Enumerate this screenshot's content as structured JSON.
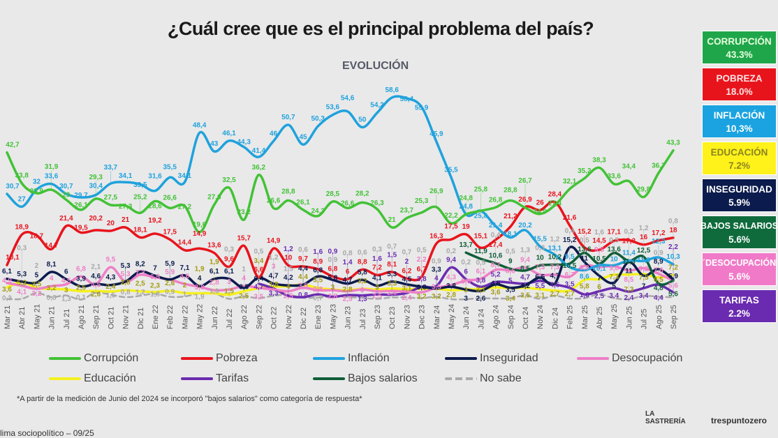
{
  "title": "¿Cuál cree que es el principal problema del país?",
  "subtitle": "EVOLUCIÓN",
  "panel": [
    {
      "label": "CORRUPCIÓN",
      "value": "43.3%",
      "bg": "#1fa64a",
      "fg": "#e8ffe0"
    },
    {
      "label": "POBREZA",
      "value": "18.0%",
      "bg": "#e8141c",
      "fg": "#ffe3e3"
    },
    {
      "label": "INFLACIÓN",
      "value": "10,3%",
      "bg": "#1aa3e0",
      "fg": "#ffffff"
    },
    {
      "label": "EDUCACIÓN",
      "value": "7.2%",
      "bg": "#fff21a",
      "fg": "#8a8420"
    },
    {
      "label": "INSEGURIDAD",
      "value": "5.9%",
      "bg": "#0c1b4d",
      "fg": "#ffffff"
    },
    {
      "label": "BAJOS SALARIOS",
      "value": "5.6%",
      "bg": "#0f6b3c",
      "fg": "#ffffff"
    },
    {
      "label": "´DESOCUPACIÓN",
      "value": "5.6%",
      "bg": "#f07ac8",
      "fg": "#ffffff"
    },
    {
      "label": "TARIFAS",
      "value": "2.2%",
      "bg": "#6a2bb0",
      "fg": "#ffffff"
    }
  ],
  "note": "*A partir de la medición de Junio del 2024 se incorporó \"bajos salarios\" como categoría de respuesta*",
  "footer": "lima sociopolítico – 09/25",
  "logos": {
    "left": "LA SASTRERÍA",
    "right": "trespuntozero"
  },
  "chart_data": {
    "type": "line",
    "title": "¿Cuál cree que es el principal problema del país?",
    "subtitle": "EVOLUCIÓN",
    "ylim": [
      0,
      60
    ],
    "grid": false,
    "legend": "bottom",
    "categories": [
      "Mar 21",
      "Abr 21",
      "May 21",
      "Jun 21",
      "Jul 21",
      "Ago 21",
      "Sep 21",
      "Oct 21",
      "Nov 21",
      "Dic 21",
      "Ene 22",
      "Feb 22",
      "Mar 22",
      "May 22",
      "Jun 22",
      "Jul 22",
      "Ago 22",
      "Sep 22",
      "Oct 22",
      "Nov 22",
      "Dic 22",
      "Ene 23",
      "May 23",
      "Jun 23",
      "Jul 23",
      "Sep 23",
      "Oct 23",
      "Nov 23",
      "Dec 23",
      "Mar 24",
      "May 24",
      "Jun 24",
      "Jul 24",
      "Ago 24",
      "Sep 24",
      "Oct 24",
      "Nov 24",
      "Dic 24",
      "Feb 25",
      "Mar 25",
      "Abr 25",
      "May 25",
      "Jun 25",
      "Jul 25",
      "Ago 25",
      "Sep 25"
    ],
    "series": [
      {
        "name": "No sabe",
        "color": "#a8a8a8",
        "dashed": true,
        "values": [
          0.3,
          0.3,
          2,
          0.8,
          1.3,
          0.1,
          2.1,
          1.5,
          0.8,
          1.2,
          1.8,
          0.9,
          1,
          1.9,
          1.9,
          0.3,
          1,
          0.5,
          1.2,
          1.5,
          0.6,
          0.7,
          0.9,
          0.8,
          0.6,
          0.3,
          0.7,
          0.7,
          0.5,
          0.9,
          0.2,
          0.2,
          0.5,
          0.4,
          0.5,
          1.3,
          0.3,
          1.2,
          0.4,
          0.5,
          1.6,
          0.5,
          0.2,
          1.2,
          0.9,
          0.8
        ]
      },
      {
        "name": "Educación",
        "color": "#f5f01e",
        "values": [
          3.6,
          5.2,
          3.5,
          3.2,
          3.0,
          2.5,
          2.6,
          2.4,
          2.8,
          2.5,
          2.3,
          2.6,
          2.0,
          1.9,
          1.9,
          1.5,
          2.5,
          3.4,
          3.8,
          4,
          4.4,
          3.5,
          3.0,
          2.8,
          3.2,
          3.0,
          3.3,
          3.1,
          3.2,
          3.2,
          2.8,
          3.0,
          3.1,
          3.6,
          3.4,
          3.5,
          3.1,
          2.7,
          2.7,
          5.8,
          6.0,
          7.3,
          7.3,
          7.5,
          6.5,
          7.2
        ]
      },
      {
        "name": "Tarifas",
        "color": "#6a2bb0",
        "values": [
          null,
          null,
          null,
          null,
          null,
          null,
          null,
          null,
          null,
          null,
          null,
          null,
          null,
          null,
          null,
          null,
          null,
          4.7,
          3.3,
          1.2,
          0.8,
          1.6,
          0.9,
          1.4,
          1.3,
          1.6,
          1.5,
          2.0,
          3.8,
          4,
          9.4,
          6,
          3.8,
          5.2,
          5.0,
          4.7,
          5.5,
          4.5,
          3.5,
          1.6,
          2.5,
          3.4,
          2.4,
          3.4,
          4.4,
          2.2
        ]
      },
      {
        "name": "Desocupación",
        "color": "#ee7fc6",
        "values": [
          4.9,
          4.1,
          3.2,
          4.0,
          4.5,
          6.8,
          4.5,
          9.5,
          5.3,
          7.3,
          6.5,
          5.9,
          4.6,
          3.8,
          2.8,
          3.0,
          4,
          3.5,
          3.0,
          2.5,
          3.5,
          2.8,
          2.8,
          2.5,
          3.0,
          2.5,
          2.6,
          2.4,
          2.2,
          3.5,
          4.3,
          5.6,
          6.1,
          8.7,
          8.6,
          9.4,
          7.3,
          7.3,
          6.7,
          9.9,
          9.5,
          9.8,
          8.5,
          9.2,
          7.6,
          5.6
        ]
      },
      {
        "name": "Inseguridad",
        "color": "#0c1b4d",
        "values": [
          6.1,
          5.3,
          5,
          8.1,
          6,
          3.9,
          4.6,
          4.3,
          5.3,
          8.2,
          7,
          5.9,
          7.1,
          4,
          6.1,
          6.1,
          3.5,
          6.4,
          4.7,
          4.2,
          4.4,
          6.8,
          5.8,
          4.7,
          5.8,
          4.1,
          5.3,
          4.5,
          3.8,
          3.3,
          3.8,
          3.0,
          2.6,
          4.5,
          3.5,
          4.2,
          6.5,
          4.7,
          15.2,
          11,
          7,
          5,
          11,
          7,
          8.9,
          5.9
        ]
      },
      {
        "name": "Bajos salarios",
        "color": "#0f5e38",
        "values": [
          null,
          null,
          null,
          null,
          null,
          null,
          null,
          null,
          null,
          null,
          null,
          null,
          null,
          null,
          null,
          null,
          null,
          null,
          null,
          null,
          null,
          null,
          null,
          null,
          null,
          null,
          null,
          null,
          null,
          null,
          null,
          13.7,
          11.9,
          10.6,
          9,
          8.5,
          10,
          10.2,
          10.5,
          13.6,
          10.5,
          13.6,
          11.3,
          12.5,
          4.8,
          5.6
        ]
      },
      {
        "name": "Pobreza",
        "color": "#e8141c",
        "values": [
          10.1,
          18.9,
          18.7,
          14.7,
          21.4,
          19.5,
          20.2,
          20,
          21,
          18.1,
          19.2,
          17.5,
          14.4,
          14.9,
          13.6,
          9.6,
          15.7,
          6.6,
          14.9,
          10,
          9.7,
          8.9,
          6.8,
          6,
          8.8,
          7.2,
          8.1,
          6.2,
          6.7,
          16.3,
          17.5,
          19,
          15.1,
          17.4,
          21.2,
          26.9,
          26,
          28.4,
          21.6,
          15.2,
          14.5,
          17.1,
          17.3,
          16,
          17.2,
          18.0
        ]
      },
      {
        "name": "Inflación",
        "color": "#1fa2dc",
        "values": [
          30.7,
          27,
          32.0,
          33.6,
          30.7,
          29.7,
          30.4,
          33.7,
          34.1,
          33.5,
          31.6,
          35.5,
          34.1,
          48.4,
          43,
          46.1,
          44.3,
          41.4,
          46,
          50.7,
          45,
          50.3,
          53.6,
          54.6,
          50,
          54.2,
          58.6,
          58.4,
          55.9,
          45.9,
          35.5,
          24.8,
          25.8,
          21.4,
          18.1,
          20.2,
          15.5,
          13.1,
          9.5,
          8.6,
          10.1,
          10.0,
          11.4,
          11.3,
          12.3,
          10.3
        ]
      },
      {
        "name": "Corrupción",
        "color": "#43c236",
        "values": [
          42.7,
          33.8,
          30.9,
          31.9,
          29,
          26.1,
          29.3,
          27.5,
          27.3,
          25.2,
          28.6,
          26.6,
          27.2,
          19.6,
          27.6,
          32.5,
          23.2,
          36.2,
          26.6,
          28.8,
          26.1,
          24.3,
          28.5,
          26.6,
          28.2,
          26.3,
          21,
          23.7,
          25.3,
          26.9,
          22.2,
          24.8,
          25.8,
          26.8,
          28.8,
          26.7,
          24.9,
          27.4,
          32.1,
          35.2,
          38.3,
          33.6,
          34.4,
          29.8,
          36.7,
          43.3
        ]
      }
    ],
    "legend_entries": [
      {
        "name": "Corrupción",
        "color": "#43c236"
      },
      {
        "name": "Pobreza",
        "color": "#e8141c"
      },
      {
        "name": "Inflación",
        "color": "#1fa2dc"
      },
      {
        "name": "Inseguridad",
        "color": "#0c1b4d"
      },
      {
        "name": "Desocupación",
        "color": "#ee7fc6"
      },
      {
        "name": "Educación",
        "color": "#f5f01e"
      },
      {
        "name": "Tarifas",
        "color": "#6a2bb0"
      },
      {
        "name": "Bajos salarios",
        "color": "#0f5e38"
      },
      {
        "name": "No sabe",
        "color": "#a8a8a8",
        "dashed": true
      }
    ]
  }
}
